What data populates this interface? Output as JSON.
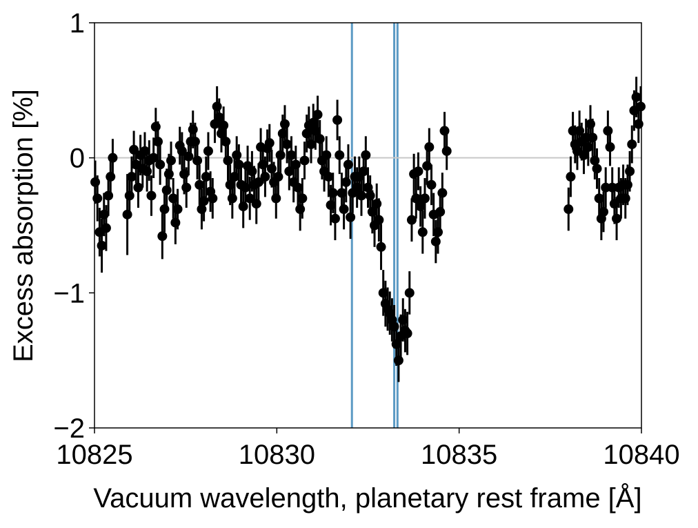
{
  "chart_data": {
    "type": "scatter",
    "title": "",
    "xlabel": "Vacuum wavelength, planetary rest frame [Å]",
    "ylabel": "Excess absorption [%]",
    "xlim": [
      10825,
      10840
    ],
    "ylim": [
      -2,
      1
    ],
    "x_ticks": [
      10825,
      10830,
      10835,
      10840
    ],
    "x_tick_labels": [
      "10825",
      "10830",
      "10835",
      "10840"
    ],
    "y_ticks": [
      -2,
      -1,
      0,
      1
    ],
    "y_tick_labels": [
      "−2",
      "−1",
      "0",
      "1"
    ],
    "grid": false,
    "legend": "none",
    "zero_line": {
      "y": 0,
      "color": "#c8c8c8"
    },
    "reference_lines": {
      "x": [
        10832.06,
        10833.22,
        10833.31
      ],
      "color": "#5b9ac4"
    },
    "series": [
      {
        "marker_color": "#000000",
        "error_color": "#000000",
        "points": [
          {
            "x": 10825.02,
            "y": -0.18,
            "err": 0.16
          },
          {
            "x": 10825.08,
            "y": -0.3,
            "err": 0.17
          },
          {
            "x": 10825.14,
            "y": -0.55,
            "err": 0.18
          },
          {
            "x": 10825.2,
            "y": -0.65,
            "err": 0.2
          },
          {
            "x": 10825.26,
            "y": -0.42,
            "err": 0.16
          },
          {
            "x": 10825.32,
            "y": -0.52,
            "err": 0.17
          },
          {
            "x": 10825.38,
            "y": -0.28,
            "err": 0.15
          },
          {
            "x": 10825.44,
            "y": -0.14,
            "err": 0.15
          },
          {
            "x": 10825.5,
            "y": 0.0,
            "err": 0.14
          },
          {
            "x": 10825.9,
            "y": -0.42,
            "err": 0.3
          },
          {
            "x": 10825.96,
            "y": -0.28,
            "err": 0.16
          },
          {
            "x": 10826.02,
            "y": -0.14,
            "err": 0.15
          },
          {
            "x": 10826.08,
            "y": 0.06,
            "err": 0.14
          },
          {
            "x": 10826.14,
            "y": -0.05,
            "err": 0.14
          },
          {
            "x": 10826.2,
            "y": -0.22,
            "err": 0.15
          },
          {
            "x": 10826.26,
            "y": 0.02,
            "err": 0.15
          },
          {
            "x": 10826.32,
            "y": -0.08,
            "err": 0.14
          },
          {
            "x": 10826.38,
            "y": 0.05,
            "err": 0.14
          },
          {
            "x": 10826.44,
            "y": -0.1,
            "err": 0.15
          },
          {
            "x": 10826.5,
            "y": -0.02,
            "err": 0.15
          },
          {
            "x": 10826.56,
            "y": -0.28,
            "err": 0.15
          },
          {
            "x": 10826.62,
            "y": 0.0,
            "err": 0.15
          },
          {
            "x": 10826.68,
            "y": 0.23,
            "err": 0.14
          },
          {
            "x": 10826.74,
            "y": 0.12,
            "err": 0.15
          },
          {
            "x": 10826.8,
            "y": -0.05,
            "err": 0.15
          },
          {
            "x": 10826.86,
            "y": -0.58,
            "err": 0.17
          },
          {
            "x": 10826.92,
            "y": -0.38,
            "err": 0.17
          },
          {
            "x": 10826.98,
            "y": -0.24,
            "err": 0.16
          },
          {
            "x": 10827.04,
            "y": -0.12,
            "err": 0.15
          },
          {
            "x": 10827.1,
            "y": -0.02,
            "err": 0.14
          },
          {
            "x": 10827.16,
            "y": -0.3,
            "err": 0.15
          },
          {
            "x": 10827.22,
            "y": -0.48,
            "err": 0.16
          },
          {
            "x": 10827.28,
            "y": -0.38,
            "err": 0.15
          },
          {
            "x": 10827.34,
            "y": 0.09,
            "err": 0.14
          },
          {
            "x": 10827.4,
            "y": 0.05,
            "err": 0.14
          },
          {
            "x": 10827.46,
            "y": -0.12,
            "err": 0.15
          },
          {
            "x": 10827.52,
            "y": -0.22,
            "err": 0.15
          },
          {
            "x": 10827.58,
            "y": 0.01,
            "err": 0.14
          },
          {
            "x": 10827.64,
            "y": 0.12,
            "err": 0.14
          },
          {
            "x": 10827.7,
            "y": 0.21,
            "err": 0.14
          },
          {
            "x": 10827.76,
            "y": 0.12,
            "err": 0.14
          },
          {
            "x": 10827.82,
            "y": -0.02,
            "err": 0.14
          },
          {
            "x": 10827.88,
            "y": -0.2,
            "err": 0.15
          },
          {
            "x": 10827.94,
            "y": -0.38,
            "err": 0.15
          },
          {
            "x": 10828.0,
            "y": -0.32,
            "err": 0.15
          },
          {
            "x": 10828.06,
            "y": -0.14,
            "err": 0.15
          },
          {
            "x": 10828.12,
            "y": 0.05,
            "err": 0.14
          },
          {
            "x": 10828.18,
            "y": -0.25,
            "err": 0.15
          },
          {
            "x": 10828.24,
            "y": -0.3,
            "err": 0.15
          },
          {
            "x": 10828.3,
            "y": 0.25,
            "err": 0.14
          },
          {
            "x": 10828.36,
            "y": 0.38,
            "err": 0.15
          },
          {
            "x": 10828.42,
            "y": 0.3,
            "err": 0.14
          },
          {
            "x": 10828.48,
            "y": 0.18,
            "err": 0.14
          },
          {
            "x": 10828.54,
            "y": 0.24,
            "err": 0.14
          },
          {
            "x": 10828.6,
            "y": 0.12,
            "err": 0.14
          },
          {
            "x": 10828.66,
            "y": -0.02,
            "err": 0.15
          },
          {
            "x": 10828.72,
            "y": -0.2,
            "err": 0.15
          },
          {
            "x": 10828.78,
            "y": -0.3,
            "err": 0.15
          },
          {
            "x": 10828.84,
            "y": -0.14,
            "err": 0.14
          },
          {
            "x": 10828.9,
            "y": 0.02,
            "err": 0.14
          },
          {
            "x": 10828.96,
            "y": -0.05,
            "err": 0.15
          },
          {
            "x": 10829.02,
            "y": -0.2,
            "err": 0.15
          },
          {
            "x": 10829.08,
            "y": -0.36,
            "err": 0.16
          },
          {
            "x": 10829.14,
            "y": -0.22,
            "err": 0.15
          },
          {
            "x": 10829.2,
            "y": -0.06,
            "err": 0.15
          },
          {
            "x": 10829.26,
            "y": -0.3,
            "err": 0.16
          },
          {
            "x": 10829.32,
            "y": -0.1,
            "err": 0.15
          },
          {
            "x": 10829.38,
            "y": -0.2,
            "err": 0.14
          },
          {
            "x": 10829.44,
            "y": -0.34,
            "err": 0.15
          },
          {
            "x": 10829.5,
            "y": -0.18,
            "err": 0.14
          },
          {
            "x": 10829.56,
            "y": 0.08,
            "err": 0.14
          },
          {
            "x": 10829.62,
            "y": -0.05,
            "err": 0.14
          },
          {
            "x": 10829.68,
            "y": -0.14,
            "err": 0.15
          },
          {
            "x": 10829.74,
            "y": 0.07,
            "err": 0.14
          },
          {
            "x": 10829.8,
            "y": 0.11,
            "err": 0.14
          },
          {
            "x": 10829.86,
            "y": -0.08,
            "err": 0.14
          },
          {
            "x": 10829.92,
            "y": -0.18,
            "err": 0.15
          },
          {
            "x": 10829.98,
            "y": -0.3,
            "err": 0.15
          },
          {
            "x": 10830.04,
            "y": -0.14,
            "err": 0.14
          },
          {
            "x": 10830.1,
            "y": 0.02,
            "err": 0.14
          },
          {
            "x": 10830.16,
            "y": 0.18,
            "err": 0.14
          },
          {
            "x": 10830.22,
            "y": 0.25,
            "err": 0.14
          },
          {
            "x": 10830.28,
            "y": 0.1,
            "err": 0.14
          },
          {
            "x": 10830.34,
            "y": -0.1,
            "err": 0.14
          },
          {
            "x": 10830.4,
            "y": 0.02,
            "err": 0.14
          },
          {
            "x": 10830.46,
            "y": -0.18,
            "err": 0.15
          },
          {
            "x": 10830.52,
            "y": -0.05,
            "err": 0.14
          },
          {
            "x": 10830.58,
            "y": -0.22,
            "err": 0.15
          },
          {
            "x": 10830.64,
            "y": -0.38,
            "err": 0.16
          },
          {
            "x": 10830.7,
            "y": -0.3,
            "err": 0.15
          },
          {
            "x": 10830.76,
            "y": -0.02,
            "err": 0.14
          },
          {
            "x": 10830.82,
            "y": 0.18,
            "err": 0.14
          },
          {
            "x": 10830.88,
            "y": 0.24,
            "err": 0.14
          },
          {
            "x": 10830.94,
            "y": 0.1,
            "err": 0.14
          },
          {
            "x": 10831.0,
            "y": 0.26,
            "err": 0.14
          },
          {
            "x": 10831.06,
            "y": 0.2,
            "err": 0.14
          },
          {
            "x": 10831.12,
            "y": 0.32,
            "err": 0.14
          },
          {
            "x": 10831.18,
            "y": 0.14,
            "err": 0.14
          },
          {
            "x": 10831.24,
            "y": -0.02,
            "err": 0.14
          },
          {
            "x": 10831.3,
            "y": -0.1,
            "err": 0.15
          },
          {
            "x": 10831.36,
            "y": 0.02,
            "err": 0.14
          },
          {
            "x": 10831.42,
            "y": -0.14,
            "err": 0.15
          },
          {
            "x": 10831.48,
            "y": -0.35,
            "err": 0.15
          },
          {
            "x": 10831.54,
            "y": -0.26,
            "err": 0.15
          },
          {
            "x": 10831.6,
            "y": -0.45,
            "err": 0.16
          },
          {
            "x": 10831.66,
            "y": 0.28,
            "err": 0.15
          },
          {
            "x": 10831.72,
            "y": 0.02,
            "err": 0.14
          },
          {
            "x": 10831.78,
            "y": -0.26,
            "err": 0.15
          },
          {
            "x": 10831.84,
            "y": -0.38,
            "err": 0.15
          },
          {
            "x": 10831.9,
            "y": -0.18,
            "err": 0.15
          },
          {
            "x": 10831.96,
            "y": -0.05,
            "err": 0.15
          },
          {
            "x": 10832.02,
            "y": -0.44,
            "err": 0.16
          },
          {
            "x": 10832.08,
            "y": -0.26,
            "err": 0.15
          },
          {
            "x": 10832.14,
            "y": -0.14,
            "err": 0.15
          },
          {
            "x": 10832.2,
            "y": -0.22,
            "err": 0.15
          },
          {
            "x": 10832.26,
            "y": -0.14,
            "err": 0.15
          },
          {
            "x": 10832.32,
            "y": -0.28,
            "err": 0.15
          },
          {
            "x": 10832.38,
            "y": -0.1,
            "err": 0.15
          },
          {
            "x": 10832.44,
            "y": 0.02,
            "err": 0.14
          },
          {
            "x": 10832.5,
            "y": -0.22,
            "err": 0.15
          },
          {
            "x": 10832.56,
            "y": -0.28,
            "err": 0.15
          },
          {
            "x": 10832.62,
            "y": -0.4,
            "err": 0.16
          },
          {
            "x": 10832.68,
            "y": -0.5,
            "err": 0.16
          },
          {
            "x": 10832.74,
            "y": -0.34,
            "err": 0.15
          },
          {
            "x": 10832.8,
            "y": -0.46,
            "err": 0.16
          },
          {
            "x": 10832.86,
            "y": -0.66,
            "err": 0.17
          },
          {
            "x": 10832.92,
            "y": -1.0,
            "err": 0.17
          },
          {
            "x": 10832.98,
            "y": -1.08,
            "err": 0.17
          },
          {
            "x": 10833.04,
            "y": -1.12,
            "err": 0.16
          },
          {
            "x": 10833.1,
            "y": -1.15,
            "err": 0.16
          },
          {
            "x": 10833.16,
            "y": -1.2,
            "err": 0.16
          },
          {
            "x": 10833.22,
            "y": -1.25,
            "err": 0.16
          },
          {
            "x": 10833.28,
            "y": -1.38,
            "err": 0.16
          },
          {
            "x": 10833.34,
            "y": -1.5,
            "err": 0.16
          },
          {
            "x": 10833.4,
            "y": -1.32,
            "err": 0.16
          },
          {
            "x": 10833.46,
            "y": -1.2,
            "err": 0.16
          },
          {
            "x": 10833.52,
            "y": -1.28,
            "err": 0.16
          },
          {
            "x": 10833.58,
            "y": -1.3,
            "err": 0.16
          },
          {
            "x": 10833.64,
            "y": -1.0,
            "err": 0.16
          },
          {
            "x": 10833.7,
            "y": -0.46,
            "err": 0.16
          },
          {
            "x": 10833.76,
            "y": -0.12,
            "err": 0.15
          },
          {
            "x": 10833.82,
            "y": -0.3,
            "err": 0.15
          },
          {
            "x": 10833.88,
            "y": -0.1,
            "err": 0.14
          },
          {
            "x": 10833.94,
            "y": -0.36,
            "err": 0.15
          },
          {
            "x": 10834.0,
            "y": -0.55,
            "err": 0.16
          },
          {
            "x": 10834.06,
            "y": -0.3,
            "err": 0.15
          },
          {
            "x": 10834.12,
            "y": -0.06,
            "err": 0.14
          },
          {
            "x": 10834.18,
            "y": 0.08,
            "err": 0.14
          },
          {
            "x": 10834.24,
            "y": -0.2,
            "err": 0.15
          },
          {
            "x": 10834.3,
            "y": -0.42,
            "err": 0.16
          },
          {
            "x": 10834.36,
            "y": -0.62,
            "err": 0.16
          },
          {
            "x": 10834.42,
            "y": -0.55,
            "err": 0.16
          },
          {
            "x": 10834.48,
            "y": -0.4,
            "err": 0.15
          },
          {
            "x": 10834.54,
            "y": -0.26,
            "err": 0.15
          },
          {
            "x": 10834.6,
            "y": 0.2,
            "err": 0.14
          },
          {
            "x": 10834.66,
            "y": 0.05,
            "err": 0.14
          },
          {
            "x": 10838.0,
            "y": -0.38,
            "err": 0.16
          },
          {
            "x": 10838.06,
            "y": -0.14,
            "err": 0.15
          },
          {
            "x": 10838.12,
            "y": 0.2,
            "err": 0.14
          },
          {
            "x": 10838.18,
            "y": 0.1,
            "err": 0.14
          },
          {
            "x": 10838.24,
            "y": 0.05,
            "err": 0.14
          },
          {
            "x": 10838.3,
            "y": 0.2,
            "err": 0.15
          },
          {
            "x": 10838.36,
            "y": 0.12,
            "err": 0.14
          },
          {
            "x": 10838.42,
            "y": 0.02,
            "err": 0.14
          },
          {
            "x": 10838.48,
            "y": 0.15,
            "err": 0.14
          },
          {
            "x": 10838.54,
            "y": 0.08,
            "err": 0.14
          },
          {
            "x": 10838.6,
            "y": 0.25,
            "err": 0.14
          },
          {
            "x": 10838.66,
            "y": 0.15,
            "err": 0.14
          },
          {
            "x": 10838.72,
            "y": -0.02,
            "err": 0.14
          },
          {
            "x": 10838.78,
            "y": -0.08,
            "err": 0.15
          },
          {
            "x": 10838.84,
            "y": -0.3,
            "err": 0.15
          },
          {
            "x": 10838.9,
            "y": -0.45,
            "err": 0.16
          },
          {
            "x": 10838.96,
            "y": -0.4,
            "err": 0.15
          },
          {
            "x": 10839.02,
            "y": -0.22,
            "err": 0.15
          },
          {
            "x": 10839.08,
            "y": 0.2,
            "err": 0.15
          },
          {
            "x": 10839.14,
            "y": 0.08,
            "err": 0.14
          },
          {
            "x": 10839.2,
            "y": -0.22,
            "err": 0.15
          },
          {
            "x": 10839.26,
            "y": -0.34,
            "err": 0.15
          },
          {
            "x": 10839.32,
            "y": -0.45,
            "err": 0.16
          },
          {
            "x": 10839.38,
            "y": -0.22,
            "err": 0.15
          },
          {
            "x": 10839.44,
            "y": -0.3,
            "err": 0.15
          },
          {
            "x": 10839.5,
            "y": -0.2,
            "err": 0.15
          },
          {
            "x": 10839.56,
            "y": -0.3,
            "err": 0.15
          },
          {
            "x": 10839.62,
            "y": -0.2,
            "err": 0.15
          },
          {
            "x": 10839.68,
            "y": -0.1,
            "err": 0.15
          },
          {
            "x": 10839.74,
            "y": 0.1,
            "err": 0.14
          },
          {
            "x": 10839.8,
            "y": 0.35,
            "err": 0.15
          },
          {
            "x": 10839.86,
            "y": 0.45,
            "err": 0.15
          },
          {
            "x": 10839.92,
            "y": 0.25,
            "err": 0.14
          },
          {
            "x": 10839.98,
            "y": 0.38,
            "err": 0.15
          }
        ]
      }
    ]
  }
}
